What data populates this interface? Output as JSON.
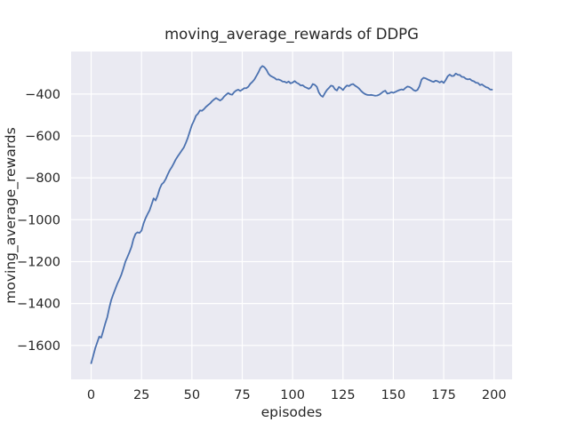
{
  "chart_data": {
    "type": "line",
    "title": "moving_average_rewards of DDPG",
    "xlabel": "episodes",
    "ylabel": "moving_average_rewards",
    "legend": false,
    "grid": true,
    "style": {
      "figure_bg": "#ffffff",
      "axes_bg": "#eaeaf2",
      "grid_color": "#ffffff",
      "line_color": "#4c72b0",
      "text_color": "#262626",
      "line_width": 1.8
    },
    "xlim": [
      -9.95,
      208.95
    ],
    "ylim": [
      -1762,
      -197
    ],
    "xticks": {
      "values": [
        0,
        25,
        50,
        75,
        100,
        125,
        150,
        175,
        200
      ],
      "labels": [
        "0",
        "25",
        "50",
        "75",
        "100",
        "125",
        "150",
        "175",
        "200"
      ]
    },
    "yticks": {
      "values": [
        -400,
        -600,
        -800,
        -1000,
        -1200,
        -1400,
        -1600
      ],
      "labels": [
        "−400",
        "−600",
        "−800",
        "−1000",
        "−1200",
        "−1400",
        "−1600"
      ]
    },
    "x": {
      "start": 0,
      "step": 1,
      "end": 199
    },
    "series": [
      {
        "name": "moving_average_rewards",
        "color": "#4c72b0",
        "values": [
          -1685,
          -1650,
          -1614,
          -1586,
          -1558,
          -1563,
          -1530,
          -1495,
          -1465,
          -1420,
          -1382,
          -1355,
          -1330,
          -1305,
          -1285,
          -1262,
          -1232,
          -1200,
          -1178,
          -1155,
          -1130,
          -1092,
          -1068,
          -1060,
          -1063,
          -1052,
          -1018,
          -993,
          -973,
          -955,
          -927,
          -898,
          -908,
          -884,
          -852,
          -831,
          -822,
          -806,
          -784,
          -764,
          -749,
          -731,
          -712,
          -697,
          -683,
          -669,
          -655,
          -633,
          -608,
          -578,
          -548,
          -528,
          -504,
          -494,
          -478,
          -480,
          -472,
          -461,
          -453,
          -445,
          -434,
          -426,
          -419,
          -425,
          -431,
          -424,
          -412,
          -403,
          -395,
          -401,
          -403,
          -391,
          -383,
          -379,
          -385,
          -379,
          -372,
          -372,
          -365,
          -351,
          -342,
          -331,
          -314,
          -297,
          -276,
          -266,
          -272,
          -284,
          -303,
          -313,
          -318,
          -323,
          -331,
          -330,
          -334,
          -340,
          -341,
          -346,
          -340,
          -349,
          -345,
          -338,
          -346,
          -351,
          -359,
          -358,
          -366,
          -370,
          -375,
          -369,
          -352,
          -356,
          -365,
          -392,
          -407,
          -413,
          -396,
          -381,
          -371,
          -360,
          -362,
          -377,
          -383,
          -366,
          -372,
          -381,
          -368,
          -359,
          -362,
          -355,
          -352,
          -360,
          -366,
          -374,
          -385,
          -394,
          -400,
          -404,
          -405,
          -404,
          -406,
          -408,
          -407,
          -403,
          -396,
          -388,
          -384,
          -398,
          -396,
          -391,
          -394,
          -390,
          -385,
          -381,
          -378,
          -380,
          -371,
          -364,
          -366,
          -372,
          -381,
          -385,
          -380,
          -362,
          -331,
          -322,
          -325,
          -330,
          -334,
          -339,
          -342,
          -336,
          -339,
          -345,
          -339,
          -347,
          -333,
          -315,
          -307,
          -314,
          -313,
          -302,
          -308,
          -309,
          -318,
          -319,
          -327,
          -330,
          -328,
          -336,
          -339,
          -346,
          -347,
          -357,
          -354,
          -361,
          -367,
          -370,
          -378,
          -379
        ]
      }
    ]
  }
}
